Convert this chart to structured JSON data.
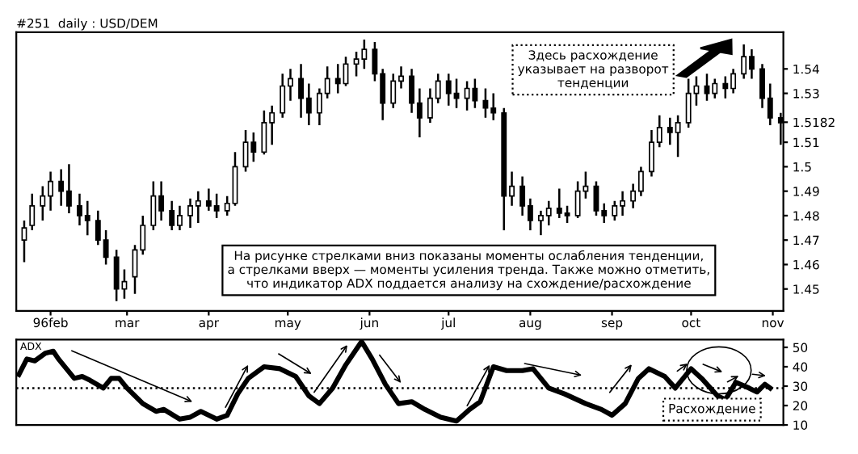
{
  "chart_data": [
    {
      "type": "candlestick",
      "title": "#251  daily : USD/DEM",
      "color": "#000000",
      "x": [
        "1996-01-22",
        "1996-01-25",
        "1996-01-29",
        "1996-02-01",
        "1996-02-05",
        "1996-02-08",
        "1996-02-12",
        "1996-02-15",
        "1996-02-19",
        "1996-02-22",
        "1996-02-26",
        "1996-02-29",
        "1996-03-04",
        "1996-03-07",
        "1996-03-11",
        "1996-03-14",
        "1996-03-18",
        "1996-03-21",
        "1996-03-25",
        "1996-03-28",
        "1996-04-01",
        "1996-04-04",
        "1996-04-08",
        "1996-04-11",
        "1996-04-15",
        "1996-04-18",
        "1996-04-22",
        "1996-04-25",
        "1996-04-29",
        "1996-05-02",
        "1996-05-06",
        "1996-05-09",
        "1996-05-13",
        "1996-05-16",
        "1996-05-20",
        "1996-05-23",
        "1996-05-27",
        "1996-05-30",
        "1996-06-03",
        "1996-06-06",
        "1996-06-10",
        "1996-06-13",
        "1996-06-17",
        "1996-06-20",
        "1996-06-24",
        "1996-06-27",
        "1996-07-01",
        "1996-07-04",
        "1996-07-08",
        "1996-07-11",
        "1996-07-15",
        "1996-07-18",
        "1996-07-22",
        "1996-07-25",
        "1996-07-29",
        "1996-08-01",
        "1996-08-05",
        "1996-08-08",
        "1996-08-12",
        "1996-08-15",
        "1996-08-19",
        "1996-08-22",
        "1996-08-26",
        "1996-08-29",
        "1996-09-02",
        "1996-09-05",
        "1996-09-09",
        "1996-09-12",
        "1996-09-16",
        "1996-09-19",
        "1996-09-23",
        "1996-09-26",
        "1996-09-30",
        "1996-10-03",
        "1996-10-07",
        "1996-10-10",
        "1996-10-14",
        "1996-10-17",
        "1996-10-21",
        "1996-10-24",
        "1996-10-28",
        "1996-10-31",
        "1996-11-04"
      ],
      "ohlc": [
        [
          1.47,
          1.478,
          1.461,
          1.475
        ],
        [
          1.476,
          1.489,
          1.474,
          1.484
        ],
        [
          1.484,
          1.492,
          1.478,
          1.488
        ],
        [
          1.488,
          1.498,
          1.482,
          1.494
        ],
        [
          1.494,
          1.499,
          1.484,
          1.49
        ],
        [
          1.49,
          1.501,
          1.481,
          1.484
        ],
        [
          1.484,
          1.489,
          1.476,
          1.48
        ],
        [
          1.48,
          1.486,
          1.472,
          1.478
        ],
        [
          1.478,
          1.482,
          1.468,
          1.47
        ],
        [
          1.47,
          1.474,
          1.46,
          1.463
        ],
        [
          1.463,
          1.466,
          1.445,
          1.45
        ],
        [
          1.45,
          1.458,
          1.446,
          1.453
        ],
        [
          1.455,
          1.468,
          1.448,
          1.466
        ],
        [
          1.466,
          1.48,
          1.464,
          1.476
        ],
        [
          1.476,
          1.494,
          1.474,
          1.488
        ],
        [
          1.488,
          1.494,
          1.478,
          1.482
        ],
        [
          1.482,
          1.486,
          1.474,
          1.476
        ],
        [
          1.476,
          1.484,
          1.474,
          1.48
        ],
        [
          1.48,
          1.487,
          1.475,
          1.484
        ],
        [
          1.484,
          1.49,
          1.477,
          1.486
        ],
        [
          1.486,
          1.491,
          1.482,
          1.484
        ],
        [
          1.484,
          1.489,
          1.479,
          1.482
        ],
        [
          1.482,
          1.488,
          1.48,
          1.485
        ],
        [
          1.485,
          1.506,
          1.484,
          1.5
        ],
        [
          1.5,
          1.515,
          1.498,
          1.51
        ],
        [
          1.51,
          1.514,
          1.502,
          1.506
        ],
        [
          1.506,
          1.523,
          1.505,
          1.518
        ],
        [
          1.518,
          1.525,
          1.509,
          1.522
        ],
        [
          1.522,
          1.538,
          1.52,
          1.533
        ],
        [
          1.533,
          1.54,
          1.527,
          1.536
        ],
        [
          1.536,
          1.542,
          1.52,
          1.528
        ],
        [
          1.528,
          1.534,
          1.517,
          1.522
        ],
        [
          1.522,
          1.532,
          1.517,
          1.53
        ],
        [
          1.53,
          1.541,
          1.528,
          1.536
        ],
        [
          1.536,
          1.542,
          1.53,
          1.534
        ],
        [
          1.534,
          1.545,
          1.533,
          1.542
        ],
        [
          1.542,
          1.547,
          1.537,
          1.544
        ],
        [
          1.544,
          1.552,
          1.54,
          1.548
        ],
        [
          1.548,
          1.551,
          1.535,
          1.538
        ],
        [
          1.538,
          1.54,
          1.519,
          1.526
        ],
        [
          1.526,
          1.538,
          1.524,
          1.535
        ],
        [
          1.535,
          1.541,
          1.532,
          1.537
        ],
        [
          1.537,
          1.54,
          1.522,
          1.526
        ],
        [
          1.526,
          1.532,
          1.512,
          1.52
        ],
        [
          1.52,
          1.532,
          1.518,
          1.528
        ],
        [
          1.528,
          1.538,
          1.526,
          1.535
        ],
        [
          1.535,
          1.538,
          1.525,
          1.53
        ],
        [
          1.53,
          1.536,
          1.524,
          1.528
        ],
        [
          1.528,
          1.535,
          1.523,
          1.532
        ],
        [
          1.532,
          1.536,
          1.524,
          1.527
        ],
        [
          1.527,
          1.532,
          1.52,
          1.524
        ],
        [
          1.524,
          1.53,
          1.519,
          1.522
        ],
        [
          1.522,
          1.524,
          1.474,
          1.488
        ],
        [
          1.488,
          1.498,
          1.484,
          1.492
        ],
        [
          1.492,
          1.496,
          1.48,
          1.484
        ],
        [
          1.484,
          1.487,
          1.474,
          1.478
        ],
        [
          1.478,
          1.482,
          1.472,
          1.48
        ],
        [
          1.48,
          1.486,
          1.476,
          1.483
        ],
        [
          1.483,
          1.491,
          1.479,
          1.481
        ],
        [
          1.481,
          1.484,
          1.477,
          1.48
        ],
        [
          1.48,
          1.494,
          1.479,
          1.49
        ],
        [
          1.49,
          1.498,
          1.487,
          1.492
        ],
        [
          1.492,
          1.494,
          1.48,
          1.482
        ],
        [
          1.482,
          1.485,
          1.477,
          1.48
        ],
        [
          1.48,
          1.486,
          1.478,
          1.484
        ],
        [
          1.484,
          1.49,
          1.48,
          1.486
        ],
        [
          1.486,
          1.493,
          1.483,
          1.49
        ],
        [
          1.49,
          1.5,
          1.488,
          1.498
        ],
        [
          1.498,
          1.515,
          1.496,
          1.51
        ],
        [
          1.51,
          1.521,
          1.508,
          1.516
        ],
        [
          1.516,
          1.52,
          1.509,
          1.514
        ],
        [
          1.514,
          1.521,
          1.504,
          1.518
        ],
        [
          1.518,
          1.536,
          1.516,
          1.53
        ],
        [
          1.53,
          1.537,
          1.525,
          1.533
        ],
        [
          1.533,
          1.538,
          1.527,
          1.53
        ],
        [
          1.53,
          1.536,
          1.528,
          1.534
        ],
        [
          1.534,
          1.537,
          1.528,
          1.532
        ],
        [
          1.532,
          1.54,
          1.53,
          1.538
        ],
        [
          1.538,
          1.55,
          1.536,
          1.545
        ],
        [
          1.545,
          1.548,
          1.536,
          1.54
        ],
        [
          1.54,
          1.542,
          1.524,
          1.528
        ],
        [
          1.528,
          1.534,
          1.517,
          1.52
        ],
        [
          1.52,
          1.522,
          1.509,
          1.518
        ]
      ],
      "xlim": [
        "1996-01-19",
        "1996-11-05"
      ],
      "xticks": [
        {
          "value": "1996-02-01",
          "label": "96feb"
        },
        {
          "value": "1996-03-01",
          "label": "mar"
        },
        {
          "value": "1996-04-01",
          "label": "apr"
        },
        {
          "value": "1996-05-01",
          "label": "may"
        },
        {
          "value": "1996-06-01",
          "label": "jun"
        },
        {
          "value": "1996-07-01",
          "label": "jul"
        },
        {
          "value": "1996-08-01",
          "label": "aug"
        },
        {
          "value": "1996-09-01",
          "label": "sep"
        },
        {
          "value": "1996-10-01",
          "label": "oct"
        },
        {
          "value": "1996-11-01",
          "label": "nov"
        }
      ],
      "ylim": [
        1.441,
        1.555
      ],
      "yticks": [
        1.45,
        1.46,
        1.47,
        1.48,
        1.49,
        1.5,
        1.51,
        1.5182,
        1.53,
        1.54
      ],
      "annotations": [
        "Здесь расхождение\nуказывает на разворот\nтенденции",
        "На рисунке стрелками вниз показаны моменты ослабления тенденции,\nа стрелками вверх — моменты усиления тренда. Также можно отметить,\nчто индикатор ADX поддается анализу на схождение/расхождение"
      ]
    },
    {
      "type": "line",
      "series": [
        {
          "name": "ADX",
          "color": "#000000",
          "x": [
            "1996-01-20",
            "1996-01-23",
            "1996-01-26",
            "1996-01-30",
            "1996-02-02",
            "1996-02-04",
            "1996-02-07",
            "1996-02-10",
            "1996-02-13",
            "1996-02-16",
            "1996-02-21",
            "1996-02-24",
            "1996-02-27",
            "1996-03-01",
            "1996-03-07",
            "1996-03-12",
            "1996-03-15",
            "1996-03-21",
            "1996-03-25",
            "1996-03-29",
            "1996-04-04",
            "1996-04-08",
            "1996-04-12",
            "1996-04-16",
            "1996-04-22",
            "1996-04-28",
            "1996-05-04",
            "1996-05-09",
            "1996-05-13",
            "1996-05-18",
            "1996-05-23",
            "1996-05-29",
            "1996-06-02",
            "1996-06-07",
            "1996-06-12",
            "1996-06-17",
            "1996-06-22",
            "1996-06-28",
            "1996-07-04",
            "1996-07-09",
            "1996-07-13",
            "1996-07-18",
            "1996-07-23",
            "1996-07-29",
            "1996-08-02",
            "1996-08-08",
            "1996-08-14",
            "1996-08-22",
            "1996-08-28",
            "1996-09-01",
            "1996-09-06",
            "1996-09-11",
            "1996-09-15",
            "1996-09-21",
            "1996-09-25",
            "1996-10-01",
            "1996-10-05",
            "1996-10-11",
            "1996-10-14",
            "1996-10-18",
            "1996-10-23",
            "1996-10-26",
            "1996-10-29",
            "1996-10-31"
          ],
          "values": [
            36,
            44,
            43,
            47,
            48,
            44,
            39,
            34,
            35,
            33,
            29,
            34,
            34,
            29,
            21,
            17,
            18,
            13,
            14,
            17,
            13,
            15,
            26,
            34,
            40,
            39,
            35,
            25,
            21,
            29,
            41,
            53,
            44,
            31,
            21,
            22,
            18,
            14,
            12,
            18,
            22,
            40,
            38,
            38,
            39,
            29,
            26,
            21,
            18,
            15,
            21,
            34,
            39,
            35,
            29,
            39,
            34,
            25,
            23,
            32,
            29,
            27,
            31,
            29
          ]
        }
      ],
      "xlim": [
        "1996-01-19",
        "1996-11-05"
      ],
      "ylim": [
        10,
        54
      ],
      "yticks": [
        10,
        20,
        30,
        40,
        50
      ],
      "tick_labels": "y",
      "ref_lines": [
        {
          "axis": "y",
          "value": 29,
          "line_style": "dotted",
          "color": "#000000"
        }
      ],
      "annotations": [
        "Расхождение"
      ]
    }
  ]
}
